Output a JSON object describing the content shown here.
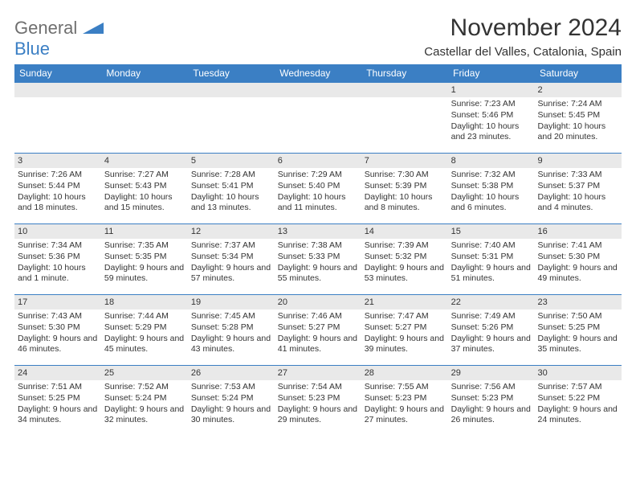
{
  "brand": {
    "general": "General",
    "blue": "Blue"
  },
  "title": "November 2024",
  "location": "Castellar del Valles, Catalonia, Spain",
  "colors": {
    "header_bg": "#3b7fc4",
    "header_text": "#ffffff",
    "daynum_bg": "#e9e9e9",
    "border": "#3b7fc4",
    "text": "#333333",
    "logo_gray": "#6f6f6f",
    "logo_blue": "#3b7fc4"
  },
  "weekdays": [
    "Sunday",
    "Monday",
    "Tuesday",
    "Wednesday",
    "Thursday",
    "Friday",
    "Saturday"
  ],
  "weeks": [
    [
      {
        "day": ""
      },
      {
        "day": ""
      },
      {
        "day": ""
      },
      {
        "day": ""
      },
      {
        "day": ""
      },
      {
        "day": "1",
        "sunrise": "Sunrise: 7:23 AM",
        "sunset": "Sunset: 5:46 PM",
        "daylight": "Daylight: 10 hours and 23 minutes."
      },
      {
        "day": "2",
        "sunrise": "Sunrise: 7:24 AM",
        "sunset": "Sunset: 5:45 PM",
        "daylight": "Daylight: 10 hours and 20 minutes."
      }
    ],
    [
      {
        "day": "3",
        "sunrise": "Sunrise: 7:26 AM",
        "sunset": "Sunset: 5:44 PM",
        "daylight": "Daylight: 10 hours and 18 minutes."
      },
      {
        "day": "4",
        "sunrise": "Sunrise: 7:27 AM",
        "sunset": "Sunset: 5:43 PM",
        "daylight": "Daylight: 10 hours and 15 minutes."
      },
      {
        "day": "5",
        "sunrise": "Sunrise: 7:28 AM",
        "sunset": "Sunset: 5:41 PM",
        "daylight": "Daylight: 10 hours and 13 minutes."
      },
      {
        "day": "6",
        "sunrise": "Sunrise: 7:29 AM",
        "sunset": "Sunset: 5:40 PM",
        "daylight": "Daylight: 10 hours and 11 minutes."
      },
      {
        "day": "7",
        "sunrise": "Sunrise: 7:30 AM",
        "sunset": "Sunset: 5:39 PM",
        "daylight": "Daylight: 10 hours and 8 minutes."
      },
      {
        "day": "8",
        "sunrise": "Sunrise: 7:32 AM",
        "sunset": "Sunset: 5:38 PM",
        "daylight": "Daylight: 10 hours and 6 minutes."
      },
      {
        "day": "9",
        "sunrise": "Sunrise: 7:33 AM",
        "sunset": "Sunset: 5:37 PM",
        "daylight": "Daylight: 10 hours and 4 minutes."
      }
    ],
    [
      {
        "day": "10",
        "sunrise": "Sunrise: 7:34 AM",
        "sunset": "Sunset: 5:36 PM",
        "daylight": "Daylight: 10 hours and 1 minute."
      },
      {
        "day": "11",
        "sunrise": "Sunrise: 7:35 AM",
        "sunset": "Sunset: 5:35 PM",
        "daylight": "Daylight: 9 hours and 59 minutes."
      },
      {
        "day": "12",
        "sunrise": "Sunrise: 7:37 AM",
        "sunset": "Sunset: 5:34 PM",
        "daylight": "Daylight: 9 hours and 57 minutes."
      },
      {
        "day": "13",
        "sunrise": "Sunrise: 7:38 AM",
        "sunset": "Sunset: 5:33 PM",
        "daylight": "Daylight: 9 hours and 55 minutes."
      },
      {
        "day": "14",
        "sunrise": "Sunrise: 7:39 AM",
        "sunset": "Sunset: 5:32 PM",
        "daylight": "Daylight: 9 hours and 53 minutes."
      },
      {
        "day": "15",
        "sunrise": "Sunrise: 7:40 AM",
        "sunset": "Sunset: 5:31 PM",
        "daylight": "Daylight: 9 hours and 51 minutes."
      },
      {
        "day": "16",
        "sunrise": "Sunrise: 7:41 AM",
        "sunset": "Sunset: 5:30 PM",
        "daylight": "Daylight: 9 hours and 49 minutes."
      }
    ],
    [
      {
        "day": "17",
        "sunrise": "Sunrise: 7:43 AM",
        "sunset": "Sunset: 5:30 PM",
        "daylight": "Daylight: 9 hours and 46 minutes."
      },
      {
        "day": "18",
        "sunrise": "Sunrise: 7:44 AM",
        "sunset": "Sunset: 5:29 PM",
        "daylight": "Daylight: 9 hours and 45 minutes."
      },
      {
        "day": "19",
        "sunrise": "Sunrise: 7:45 AM",
        "sunset": "Sunset: 5:28 PM",
        "daylight": "Daylight: 9 hours and 43 minutes."
      },
      {
        "day": "20",
        "sunrise": "Sunrise: 7:46 AM",
        "sunset": "Sunset: 5:27 PM",
        "daylight": "Daylight: 9 hours and 41 minutes."
      },
      {
        "day": "21",
        "sunrise": "Sunrise: 7:47 AM",
        "sunset": "Sunset: 5:27 PM",
        "daylight": "Daylight: 9 hours and 39 minutes."
      },
      {
        "day": "22",
        "sunrise": "Sunrise: 7:49 AM",
        "sunset": "Sunset: 5:26 PM",
        "daylight": "Daylight: 9 hours and 37 minutes."
      },
      {
        "day": "23",
        "sunrise": "Sunrise: 7:50 AM",
        "sunset": "Sunset: 5:25 PM",
        "daylight": "Daylight: 9 hours and 35 minutes."
      }
    ],
    [
      {
        "day": "24",
        "sunrise": "Sunrise: 7:51 AM",
        "sunset": "Sunset: 5:25 PM",
        "daylight": "Daylight: 9 hours and 34 minutes."
      },
      {
        "day": "25",
        "sunrise": "Sunrise: 7:52 AM",
        "sunset": "Sunset: 5:24 PM",
        "daylight": "Daylight: 9 hours and 32 minutes."
      },
      {
        "day": "26",
        "sunrise": "Sunrise: 7:53 AM",
        "sunset": "Sunset: 5:24 PM",
        "daylight": "Daylight: 9 hours and 30 minutes."
      },
      {
        "day": "27",
        "sunrise": "Sunrise: 7:54 AM",
        "sunset": "Sunset: 5:23 PM",
        "daylight": "Daylight: 9 hours and 29 minutes."
      },
      {
        "day": "28",
        "sunrise": "Sunrise: 7:55 AM",
        "sunset": "Sunset: 5:23 PM",
        "daylight": "Daylight: 9 hours and 27 minutes."
      },
      {
        "day": "29",
        "sunrise": "Sunrise: 7:56 AM",
        "sunset": "Sunset: 5:23 PM",
        "daylight": "Daylight: 9 hours and 26 minutes."
      },
      {
        "day": "30",
        "sunrise": "Sunrise: 7:57 AM",
        "sunset": "Sunset: 5:22 PM",
        "daylight": "Daylight: 9 hours and 24 minutes."
      }
    ]
  ]
}
